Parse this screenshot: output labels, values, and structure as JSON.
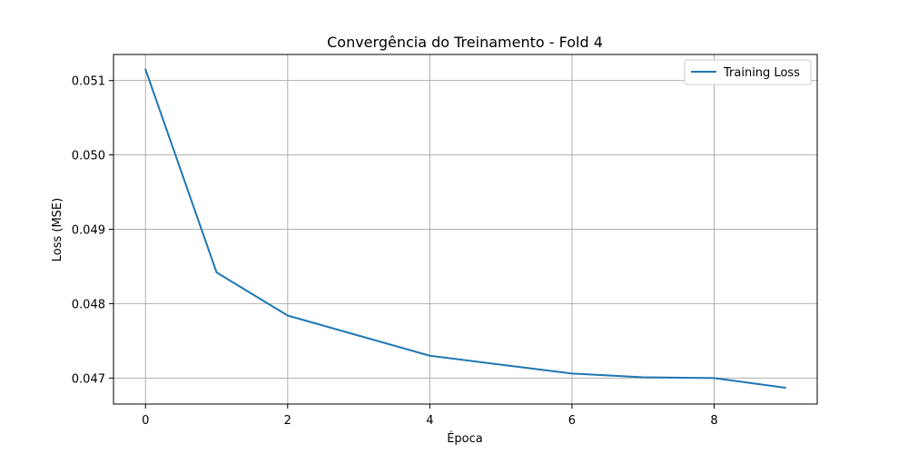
{
  "chart_data": {
    "type": "line",
    "title": "Convergência do Treinamento - Fold 4",
    "xlabel": "Época",
    "ylabel": "Loss (MSE)",
    "x": [
      0,
      1,
      2,
      3,
      4,
      5,
      6,
      7,
      8,
      9
    ],
    "series": [
      {
        "name": "Training Loss",
        "values": [
          0.05115,
          0.04842,
          0.04784,
          0.04757,
          0.0473,
          0.04718,
          0.04706,
          0.04701,
          0.047,
          0.04687
        ],
        "color": "#1f77b4"
      }
    ],
    "xlim": [
      -0.45,
      9.45
    ],
    "ylim": [
      0.04665,
      0.05135
    ],
    "xticks": [
      0,
      2,
      4,
      6,
      8
    ],
    "xtick_labels": [
      "0",
      "2",
      "4",
      "6",
      "8"
    ],
    "yticks": [
      0.047,
      0.048,
      0.049,
      0.05,
      0.051
    ],
    "ytick_labels": [
      "0.047",
      "0.048",
      "0.049",
      "0.050",
      "0.051"
    ],
    "grid": true,
    "legend_position": "top-right"
  },
  "legend": {
    "label": "Training Loss"
  }
}
